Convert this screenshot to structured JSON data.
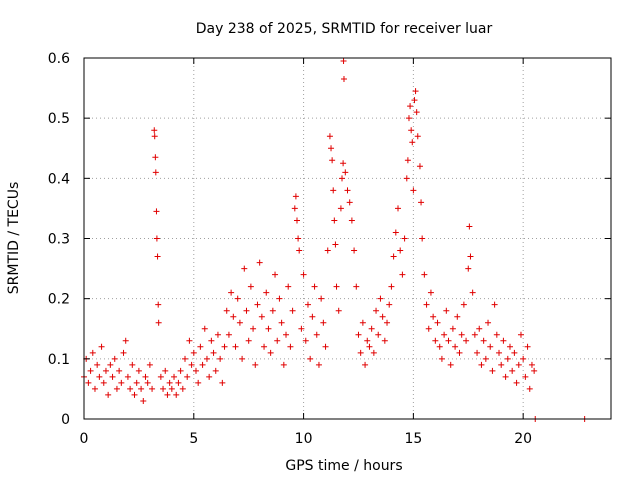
{
  "chart_data": {
    "type": "scatter",
    "title": "Day 238 of 2025, SRMTID for receiver luar",
    "xlabel": "GPS time / hours",
    "ylabel": "SRMTID / TECUs",
    "xlim": [
      0,
      24
    ],
    "ylim": [
      0,
      0.6
    ],
    "xticks": [
      0,
      5,
      10,
      15,
      20
    ],
    "yticks": [
      0,
      0.1,
      0.2,
      0.3,
      0.4,
      0.5,
      0.6
    ],
    "xtick_labels": [
      "0",
      "5",
      "10",
      "15",
      "20"
    ],
    "ytick_labels": [
      "0",
      "0.1",
      "0.2",
      "0.3",
      "0.4",
      "0.5",
      "0.6"
    ],
    "grid": true,
    "marker": "+",
    "color": "#e00000",
    "series": [
      {
        "name": "SRMTID",
        "points": [
          [
            0.0,
            0.07
          ],
          [
            0.1,
            0.1
          ],
          [
            0.2,
            0.06
          ],
          [
            0.3,
            0.08
          ],
          [
            0.4,
            0.11
          ],
          [
            0.5,
            0.05
          ],
          [
            0.6,
            0.09
          ],
          [
            0.7,
            0.07
          ],
          [
            0.8,
            0.12
          ],
          [
            0.9,
            0.06
          ],
          [
            1.0,
            0.08
          ],
          [
            1.1,
            0.04
          ],
          [
            1.2,
            0.09
          ],
          [
            1.3,
            0.07
          ],
          [
            1.4,
            0.1
          ],
          [
            1.5,
            0.05
          ],
          [
            1.6,
            0.08
          ],
          [
            1.7,
            0.06
          ],
          [
            1.8,
            0.11
          ],
          [
            1.9,
            0.13
          ],
          [
            2.0,
            0.07
          ],
          [
            2.1,
            0.05
          ],
          [
            2.2,
            0.09
          ],
          [
            2.3,
            0.04
          ],
          [
            2.4,
            0.06
          ],
          [
            2.5,
            0.08
          ],
          [
            2.6,
            0.05
          ],
          [
            2.7,
            0.03
          ],
          [
            2.8,
            0.07
          ],
          [
            2.9,
            0.06
          ],
          [
            3.0,
            0.09
          ],
          [
            3.1,
            0.05
          ],
          [
            3.2,
            0.48
          ],
          [
            3.22,
            0.47
          ],
          [
            3.25,
            0.435
          ],
          [
            3.27,
            0.41
          ],
          [
            3.3,
            0.345
          ],
          [
            3.32,
            0.3
          ],
          [
            3.35,
            0.27
          ],
          [
            3.38,
            0.19
          ],
          [
            3.4,
            0.16
          ],
          [
            3.5,
            0.07
          ],
          [
            3.6,
            0.05
          ],
          [
            3.7,
            0.08
          ],
          [
            3.8,
            0.04
          ],
          [
            3.9,
            0.06
          ],
          [
            4.0,
            0.05
          ],
          [
            4.1,
            0.07
          ],
          [
            4.2,
            0.04
          ],
          [
            4.3,
            0.06
          ],
          [
            4.4,
            0.08
          ],
          [
            4.5,
            0.05
          ],
          [
            4.6,
            0.1
          ],
          [
            4.7,
            0.07
          ],
          [
            4.8,
            0.13
          ],
          [
            4.9,
            0.09
          ],
          [
            5.0,
            0.11
          ],
          [
            5.1,
            0.08
          ],
          [
            5.2,
            0.06
          ],
          [
            5.3,
            0.12
          ],
          [
            5.4,
            0.09
          ],
          [
            5.5,
            0.15
          ],
          [
            5.6,
            0.1
          ],
          [
            5.7,
            0.07
          ],
          [
            5.8,
            0.13
          ],
          [
            5.9,
            0.11
          ],
          [
            6.0,
            0.08
          ],
          [
            6.1,
            0.14
          ],
          [
            6.2,
            0.1
          ],
          [
            6.3,
            0.06
          ],
          [
            6.4,
            0.12
          ],
          [
            6.5,
            0.18
          ],
          [
            6.6,
            0.14
          ],
          [
            6.7,
            0.21
          ],
          [
            6.8,
            0.17
          ],
          [
            6.9,
            0.12
          ],
          [
            7.0,
            0.2
          ],
          [
            7.1,
            0.16
          ],
          [
            7.2,
            0.1
          ],
          [
            7.3,
            0.25
          ],
          [
            7.4,
            0.18
          ],
          [
            7.5,
            0.13
          ],
          [
            7.6,
            0.22
          ],
          [
            7.7,
            0.15
          ],
          [
            7.8,
            0.09
          ],
          [
            7.9,
            0.19
          ],
          [
            8.0,
            0.26
          ],
          [
            8.1,
            0.17
          ],
          [
            8.2,
            0.12
          ],
          [
            8.3,
            0.21
          ],
          [
            8.4,
            0.15
          ],
          [
            8.5,
            0.11
          ],
          [
            8.6,
            0.18
          ],
          [
            8.7,
            0.24
          ],
          [
            8.8,
            0.13
          ],
          [
            8.9,
            0.2
          ],
          [
            9.0,
            0.16
          ],
          [
            9.1,
            0.09
          ],
          [
            9.2,
            0.14
          ],
          [
            9.3,
            0.22
          ],
          [
            9.4,
            0.12
          ],
          [
            9.5,
            0.18
          ],
          [
            9.6,
            0.35
          ],
          [
            9.65,
            0.37
          ],
          [
            9.7,
            0.33
          ],
          [
            9.75,
            0.3
          ],
          [
            9.8,
            0.28
          ],
          [
            9.9,
            0.15
          ],
          [
            10.0,
            0.24
          ],
          [
            10.1,
            0.13
          ],
          [
            10.2,
            0.19
          ],
          [
            10.3,
            0.1
          ],
          [
            10.4,
            0.17
          ],
          [
            10.5,
            0.22
          ],
          [
            10.6,
            0.14
          ],
          [
            10.7,
            0.09
          ],
          [
            10.8,
            0.2
          ],
          [
            10.9,
            0.16
          ],
          [
            11.0,
            0.12
          ],
          [
            11.1,
            0.28
          ],
          [
            11.2,
            0.47
          ],
          [
            11.25,
            0.45
          ],
          [
            11.3,
            0.43
          ],
          [
            11.35,
            0.38
          ],
          [
            11.4,
            0.33
          ],
          [
            11.45,
            0.29
          ],
          [
            11.5,
            0.22
          ],
          [
            11.6,
            0.18
          ],
          [
            11.7,
            0.35
          ],
          [
            11.75,
            0.4
          ],
          [
            11.8,
            0.425
          ],
          [
            11.82,
            0.595
          ],
          [
            11.84,
            0.565
          ],
          [
            11.9,
            0.41
          ],
          [
            12.0,
            0.38
          ],
          [
            12.1,
            0.36
          ],
          [
            12.2,
            0.33
          ],
          [
            12.3,
            0.28
          ],
          [
            12.4,
            0.22
          ],
          [
            12.5,
            0.14
          ],
          [
            12.6,
            0.11
          ],
          [
            12.7,
            0.16
          ],
          [
            12.8,
            0.09
          ],
          [
            12.9,
            0.13
          ],
          [
            13.0,
            0.12
          ],
          [
            13.1,
            0.15
          ],
          [
            13.2,
            0.11
          ],
          [
            13.3,
            0.18
          ],
          [
            13.4,
            0.14
          ],
          [
            13.5,
            0.2
          ],
          [
            13.6,
            0.17
          ],
          [
            13.7,
            0.13
          ],
          [
            13.8,
            0.16
          ],
          [
            13.9,
            0.19
          ],
          [
            14.0,
            0.22
          ],
          [
            14.1,
            0.27
          ],
          [
            14.2,
            0.31
          ],
          [
            14.3,
            0.35
          ],
          [
            14.4,
            0.28
          ],
          [
            14.5,
            0.24
          ],
          [
            14.6,
            0.3
          ],
          [
            14.7,
            0.4
          ],
          [
            14.75,
            0.43
          ],
          [
            14.8,
            0.5
          ],
          [
            14.85,
            0.52
          ],
          [
            14.9,
            0.48
          ],
          [
            14.95,
            0.46
          ],
          [
            15.0,
            0.38
          ],
          [
            15.05,
            0.53
          ],
          [
            15.1,
            0.545
          ],
          [
            15.15,
            0.51
          ],
          [
            15.2,
            0.47
          ],
          [
            15.3,
            0.42
          ],
          [
            15.35,
            0.36
          ],
          [
            15.4,
            0.3
          ],
          [
            15.5,
            0.24
          ],
          [
            15.6,
            0.19
          ],
          [
            15.7,
            0.15
          ],
          [
            15.8,
            0.21
          ],
          [
            15.9,
            0.17
          ],
          [
            16.0,
            0.13
          ],
          [
            16.1,
            0.16
          ],
          [
            16.2,
            0.12
          ],
          [
            16.3,
            0.1
          ],
          [
            16.4,
            0.14
          ],
          [
            16.5,
            0.18
          ],
          [
            16.6,
            0.13
          ],
          [
            16.7,
            0.09
          ],
          [
            16.8,
            0.15
          ],
          [
            16.9,
            0.12
          ],
          [
            17.0,
            0.17
          ],
          [
            17.1,
            0.11
          ],
          [
            17.2,
            0.14
          ],
          [
            17.3,
            0.19
          ],
          [
            17.4,
            0.13
          ],
          [
            17.5,
            0.25
          ],
          [
            17.55,
            0.32
          ],
          [
            17.6,
            0.27
          ],
          [
            17.7,
            0.21
          ],
          [
            17.8,
            0.14
          ],
          [
            17.9,
            0.11
          ],
          [
            18.0,
            0.15
          ],
          [
            18.1,
            0.09
          ],
          [
            18.2,
            0.13
          ],
          [
            18.3,
            0.1
          ],
          [
            18.4,
            0.16
          ],
          [
            18.5,
            0.12
          ],
          [
            18.6,
            0.08
          ],
          [
            18.7,
            0.19
          ],
          [
            18.8,
            0.14
          ],
          [
            18.9,
            0.11
          ],
          [
            19.0,
            0.09
          ],
          [
            19.1,
            0.13
          ],
          [
            19.2,
            0.07
          ],
          [
            19.3,
            0.1
          ],
          [
            19.4,
            0.12
          ],
          [
            19.5,
            0.08
          ],
          [
            19.6,
            0.11
          ],
          [
            19.7,
            0.06
          ],
          [
            19.8,
            0.09
          ],
          [
            19.9,
            0.14
          ],
          [
            20.0,
            0.1
          ],
          [
            20.1,
            0.07
          ],
          [
            20.2,
            0.12
          ],
          [
            20.3,
            0.05
          ],
          [
            20.4,
            0.09
          ],
          [
            20.5,
            0.08
          ],
          [
            20.55,
            0.0
          ],
          [
            22.8,
            0.0
          ]
        ]
      }
    ]
  }
}
